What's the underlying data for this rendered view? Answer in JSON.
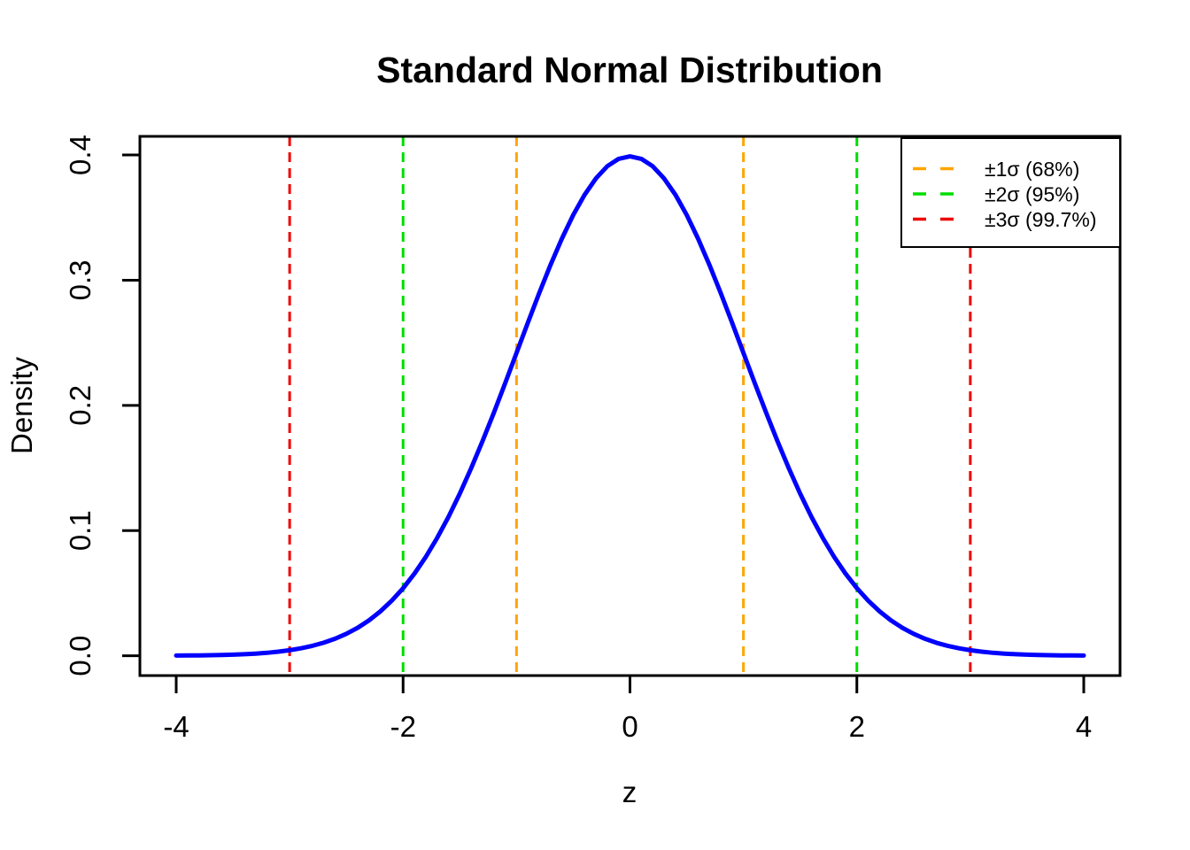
{
  "chart_data": {
    "type": "line",
    "title": "Standard Normal Distribution",
    "xlabel": "z",
    "ylabel": "Density",
    "xlim": [
      -4,
      4
    ],
    "ylim": [
      0,
      0.4
    ],
    "grid": false,
    "axis_padding_fraction": 0.04,
    "xticks": {
      "values": [
        -4,
        -2,
        0,
        2,
        4
      ],
      "labels": [
        "-4",
        "-2",
        "0",
        "2",
        "4"
      ]
    },
    "yticks": {
      "values": [
        0,
        0.1,
        0.2,
        0.3,
        0.4
      ],
      "labels": [
        "0.0",
        "0.1",
        "0.2",
        "0.3",
        "0.4"
      ]
    },
    "series": [
      {
        "name": "standard-normal-density",
        "color": "#0000FF",
        "line_width": 5,
        "x": [
          -4.0,
          -3.9,
          -3.8,
          -3.7,
          -3.6,
          -3.5,
          -3.4,
          -3.3,
          -3.2,
          -3.1,
          -3.0,
          -2.9,
          -2.8,
          -2.7,
          -2.6,
          -2.5,
          -2.4,
          -2.3,
          -2.2,
          -2.1,
          -2.0,
          -1.9,
          -1.8,
          -1.7,
          -1.6,
          -1.5,
          -1.4,
          -1.3,
          -1.2,
          -1.1,
          -1.0,
          -0.9,
          -0.8,
          -0.7,
          -0.6,
          -0.5,
          -0.4,
          -0.3,
          -0.2,
          -0.1,
          0.0,
          0.1,
          0.2,
          0.3,
          0.4,
          0.5,
          0.6,
          0.7,
          0.8,
          0.9,
          1.0,
          1.1,
          1.2,
          1.3,
          1.4,
          1.5,
          1.6,
          1.7,
          1.8,
          1.9,
          2.0,
          2.1,
          2.2,
          2.3,
          2.4,
          2.5,
          2.6,
          2.7,
          2.8,
          2.9,
          3.0,
          3.1,
          3.2,
          3.3,
          3.4,
          3.5,
          3.6,
          3.7,
          3.8,
          3.9,
          4.0
        ],
        "y": [
          0.00013,
          0.0002,
          0.00029,
          0.00042,
          0.00061,
          0.00087,
          0.00123,
          0.00172,
          0.00238,
          0.00327,
          0.00443,
          0.00595,
          0.00792,
          0.01042,
          0.01358,
          0.01753,
          0.02239,
          0.02833,
          0.03547,
          0.04398,
          0.05399,
          0.06562,
          0.07895,
          0.09405,
          0.11092,
          0.12952,
          0.14973,
          0.17137,
          0.19419,
          0.21785,
          0.24197,
          0.26609,
          0.28969,
          0.31225,
          0.33322,
          0.35207,
          0.36827,
          0.38139,
          0.39104,
          0.39695,
          0.39894,
          0.39695,
          0.39104,
          0.38139,
          0.36827,
          0.35207,
          0.33322,
          0.31225,
          0.28969,
          0.26609,
          0.24197,
          0.21785,
          0.19419,
          0.17137,
          0.14973,
          0.12952,
          0.11092,
          0.09405,
          0.07895,
          0.06562,
          0.05399,
          0.04398,
          0.03547,
          0.02833,
          0.02239,
          0.01753,
          0.01358,
          0.01042,
          0.00792,
          0.00595,
          0.00443,
          0.00327,
          0.00238,
          0.00172,
          0.00123,
          0.00087,
          0.00061,
          0.00042,
          0.00029,
          0.0002,
          0.00013
        ]
      }
    ],
    "vlines": [
      {
        "x": -1,
        "color": "#FFA500",
        "style": "dashed",
        "sigma": 1
      },
      {
        "x": 1,
        "color": "#FFA500",
        "style": "dashed",
        "sigma": 1
      },
      {
        "x": -2,
        "color": "#00DD00",
        "style": "dashed",
        "sigma": 2
      },
      {
        "x": 2,
        "color": "#00DD00",
        "style": "dashed",
        "sigma": 2
      },
      {
        "x": -3,
        "color": "#EE0000",
        "style": "dashed",
        "sigma": 3
      },
      {
        "x": 3,
        "color": "#EE0000",
        "style": "dashed",
        "sigma": 3
      }
    ],
    "legend": {
      "position": "topright",
      "items": [
        {
          "label": "±1σ (68%)",
          "color": "#FFA500",
          "style": "dashed"
        },
        {
          "label": "±2σ (95%)",
          "color": "#00DD00",
          "style": "dashed"
        },
        {
          "label": "±3σ (99.7%)",
          "color": "#EE0000",
          "style": "dashed"
        }
      ]
    }
  }
}
